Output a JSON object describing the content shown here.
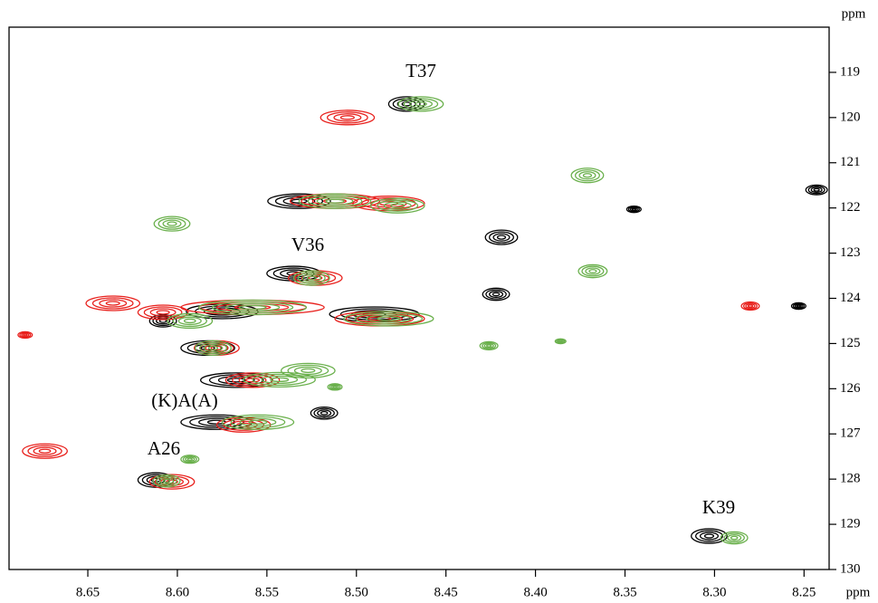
{
  "chart_data": {
    "type": "scatter",
    "xlabel": "ppm",
    "ylabel": "ppm",
    "xlim": [
      8.694,
      8.236
    ],
    "ylim": [
      130,
      118
    ],
    "xticks": [
      8.65,
      {
        "value": 8.6,
        "label": "8.60"
      },
      8.55,
      {
        "value": 8.5,
        "label": "8.50"
      },
      8.45,
      {
        "value": 8.4,
        "label": "8.40"
      },
      8.35,
      {
        "value": 8.3,
        "label": "8.30"
      },
      8.25
    ],
    "yticks": [
      119,
      120,
      121,
      122,
      123,
      124,
      125,
      126,
      127,
      128,
      129,
      130
    ],
    "annotations": [
      "T37",
      "V36",
      "(K)A(A)",
      "A26",
      "K39"
    ],
    "series": [
      {
        "color": "#000000",
        "x": [
          8.472,
          8.532,
          8.419,
          8.422,
          8.345,
          8.243,
          8.253,
          8.535,
          8.575,
          8.608,
          8.583,
          8.567,
          8.518,
          8.578,
          8.612,
          8.49,
          8.303
        ],
        "values": [
          119.7,
          121.85,
          122.65,
          123.91,
          122.03,
          121.6,
          124.17,
          123.45,
          124.29,
          124.5,
          125.1,
          125.81,
          126.54,
          126.74,
          128.02,
          124.35,
          129.26
        ],
        "widths": [
          0.02,
          0.035,
          0.018,
          0.015,
          0.008,
          0.012,
          0.008,
          0.03,
          0.04,
          0.015,
          0.03,
          0.04,
          0.015,
          0.04,
          0.02,
          0.05,
          0.02
        ]
      },
      {
        "color": "#e8201c",
        "x": [
          8.505,
          8.512,
          8.482,
          8.636,
          8.608,
          8.558,
          8.523,
          8.487,
          8.578,
          8.558,
          8.563,
          8.674,
          8.603,
          8.685,
          8.28
        ],
        "values": [
          120.0,
          121.85,
          121.9,
          124.11,
          124.31,
          124.2,
          123.55,
          124.45,
          125.1,
          125.81,
          126.8,
          127.38,
          128.06,
          124.81,
          124.17
        ],
        "widths": [
          0.03,
          0.05,
          0.04,
          0.03,
          0.028,
          0.08,
          0.03,
          0.05,
          0.025,
          0.03,
          0.03,
          0.025,
          0.025,
          0.008,
          0.01
        ]
      },
      {
        "color": "#6ab04c",
        "x": [
          8.464,
          8.512,
          8.477,
          8.603,
          8.371,
          8.368,
          8.525,
          8.558,
          8.593,
          8.482,
          8.426,
          8.386,
          8.58,
          8.543,
          8.527,
          8.512,
          8.555,
          8.593,
          8.606,
          8.289
        ],
        "values": [
          119.7,
          121.85,
          121.95,
          122.35,
          121.28,
          123.4,
          123.55,
          124.2,
          124.5,
          124.45,
          125.05,
          124.95,
          125.1,
          125.8,
          125.6,
          125.96,
          126.74,
          127.56,
          128.04,
          129.3
        ],
        "widths": [
          0.025,
          0.04,
          0.03,
          0.02,
          0.018,
          0.016,
          0.02,
          0.06,
          0.025,
          0.05,
          0.01,
          0.006,
          0.02,
          0.04,
          0.03,
          0.008,
          0.04,
          0.01,
          0.015,
          0.015
        ]
      }
    ]
  }
}
